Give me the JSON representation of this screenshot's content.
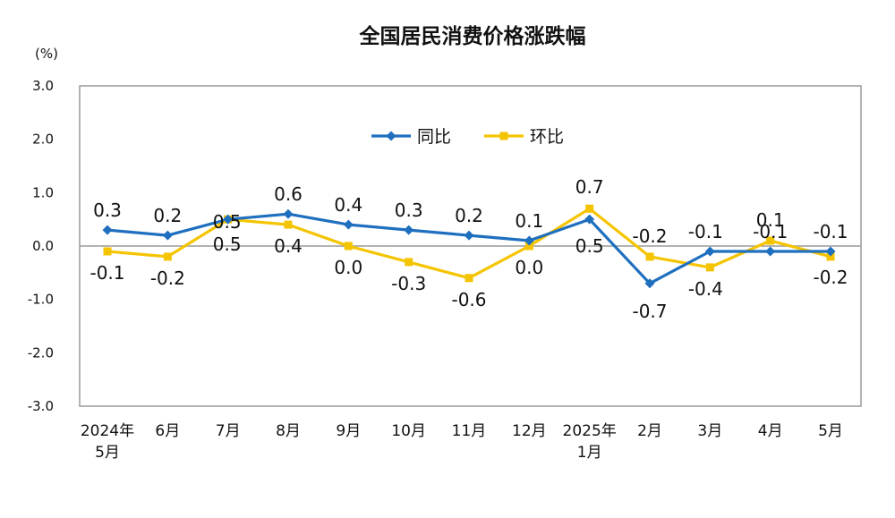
{
  "chart_data": {
    "type": "line",
    "title": "全国居民消费价格涨跌幅",
    "unit": "(%)",
    "ylim": [
      -3.0,
      3.0
    ],
    "yticks": [
      "3.0",
      "2.0",
      "1.0",
      "0.0",
      "-1.0",
      "-2.0",
      "-3.0"
    ],
    "categories": [
      [
        "2024年",
        "5月"
      ],
      [
        "6月"
      ],
      [
        "7月"
      ],
      [
        "8月"
      ],
      [
        "9月"
      ],
      [
        "10月"
      ],
      [
        "11月"
      ],
      [
        "12月"
      ],
      [
        "2025年",
        "1月"
      ],
      [
        "2月"
      ],
      [
        "3月"
      ],
      [
        "4月"
      ],
      [
        "5月"
      ]
    ],
    "legend_position": "top-center",
    "series": [
      {
        "name": "同比",
        "color": "#1F6FBF",
        "marker": "diamond",
        "values": [
          0.3,
          0.2,
          0.5,
          0.6,
          0.4,
          0.3,
          0.2,
          0.1,
          0.5,
          -0.7,
          -0.1,
          -0.1,
          -0.1
        ],
        "labels": [
          "0.3",
          "0.2",
          "0.5",
          "0.6",
          "0.4",
          "0.3",
          "0.2",
          "0.1",
          "0.5",
          "-0.7",
          "-0.1",
          "-0.1",
          "-0.1"
        ]
      },
      {
        "name": "环比",
        "color": "#F5C400",
        "marker": "square",
        "values": [
          -0.1,
          -0.2,
          0.5,
          0.4,
          0.0,
          -0.3,
          -0.6,
          0.0,
          0.7,
          -0.2,
          -0.4,
          0.1,
          -0.2
        ],
        "labels": [
          "-0.1",
          "-0.2",
          "0.5",
          "0.4",
          "0.0",
          "-0.3",
          "-0.6",
          "0.0",
          "0.7",
          "-0.2",
          "-0.4",
          "0.1",
          "-0.2"
        ]
      }
    ]
  }
}
